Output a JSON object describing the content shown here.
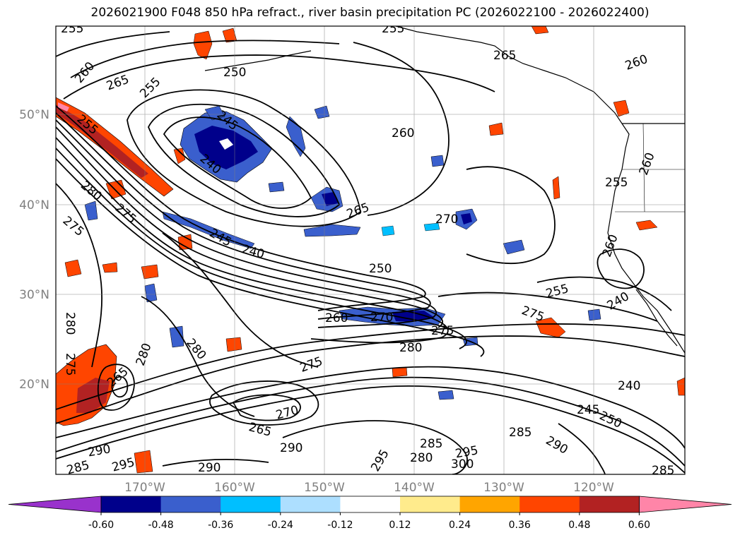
{
  "title": "2026021900 F048 850 hPa refract., river basin precipitation PC (2026022100 - 2026022400)",
  "map": {
    "lat_ticks": [
      "50°N",
      "40°N",
      "30°N",
      "20°N"
    ],
    "lon_ticks": [
      "170°W",
      "160°W",
      "150°W",
      "140°W",
      "130°W",
      "120°W"
    ],
    "tick_label_color": "#808080",
    "grid": true,
    "contour_labels": [
      {
        "text": "255"
      },
      {
        "text": "260"
      },
      {
        "text": "265"
      },
      {
        "text": "255"
      },
      {
        "text": "250"
      },
      {
        "text": "245"
      },
      {
        "text": "240"
      },
      {
        "text": "255"
      },
      {
        "text": "280"
      },
      {
        "text": "275"
      },
      {
        "text": "275"
      },
      {
        "text": "245"
      },
      {
        "text": "240"
      },
      {
        "text": "265"
      },
      {
        "text": "270"
      },
      {
        "text": "250"
      },
      {
        "text": "270"
      },
      {
        "text": "260"
      },
      {
        "text": "280"
      },
      {
        "text": "275"
      },
      {
        "text": "280"
      },
      {
        "text": "275"
      },
      {
        "text": "265"
      },
      {
        "text": "260"
      },
      {
        "text": "255"
      },
      {
        "text": "260"
      },
      {
        "text": "265"
      },
      {
        "text": "255"
      },
      {
        "text": "260"
      },
      {
        "text": "255"
      },
      {
        "text": "240"
      },
      {
        "text": "275"
      },
      {
        "text": "280"
      },
      {
        "text": "270"
      },
      {
        "text": "265"
      },
      {
        "text": "290"
      },
      {
        "text": "290"
      },
      {
        "text": "285"
      },
      {
        "text": "295"
      },
      {
        "text": "285"
      },
      {
        "text": "280"
      },
      {
        "text": "295"
      },
      {
        "text": "300"
      },
      {
        "text": "285"
      },
      {
        "text": "290"
      },
      {
        "text": "245"
      },
      {
        "text": "250"
      },
      {
        "text": "240"
      },
      {
        "text": "285"
      },
      {
        "text": "290"
      },
      {
        "text": "295"
      },
      {
        "text": "280"
      },
      {
        "text": "275"
      },
      {
        "text": "260"
      }
    ]
  },
  "colorbar": {
    "ticks": [
      "-0.60",
      "-0.48",
      "-0.36",
      "-0.24",
      "-0.12",
      "0.12",
      "0.24",
      "0.36",
      "0.48",
      "0.60"
    ],
    "colors": [
      "#9932CC",
      "#00008B",
      "#3A5FCD",
      "#00BFFF",
      "#ADDFFF",
      "#FFFFFF",
      "#FFEB8C",
      "#FFA500",
      "#FF4500",
      "#B22222",
      "#FF85A8"
    ]
  },
  "shading_colors": {
    "dark_blue": "#00008B",
    "mid_blue": "#3A5FCD",
    "light_blue": "#00BFFF",
    "pale_blue": "#ADDFFF",
    "yellow": "#FFEB8C",
    "orange": "#FFA500",
    "red_orange": "#FF4500",
    "dark_red": "#B22222",
    "pink": "#FF85A8"
  }
}
